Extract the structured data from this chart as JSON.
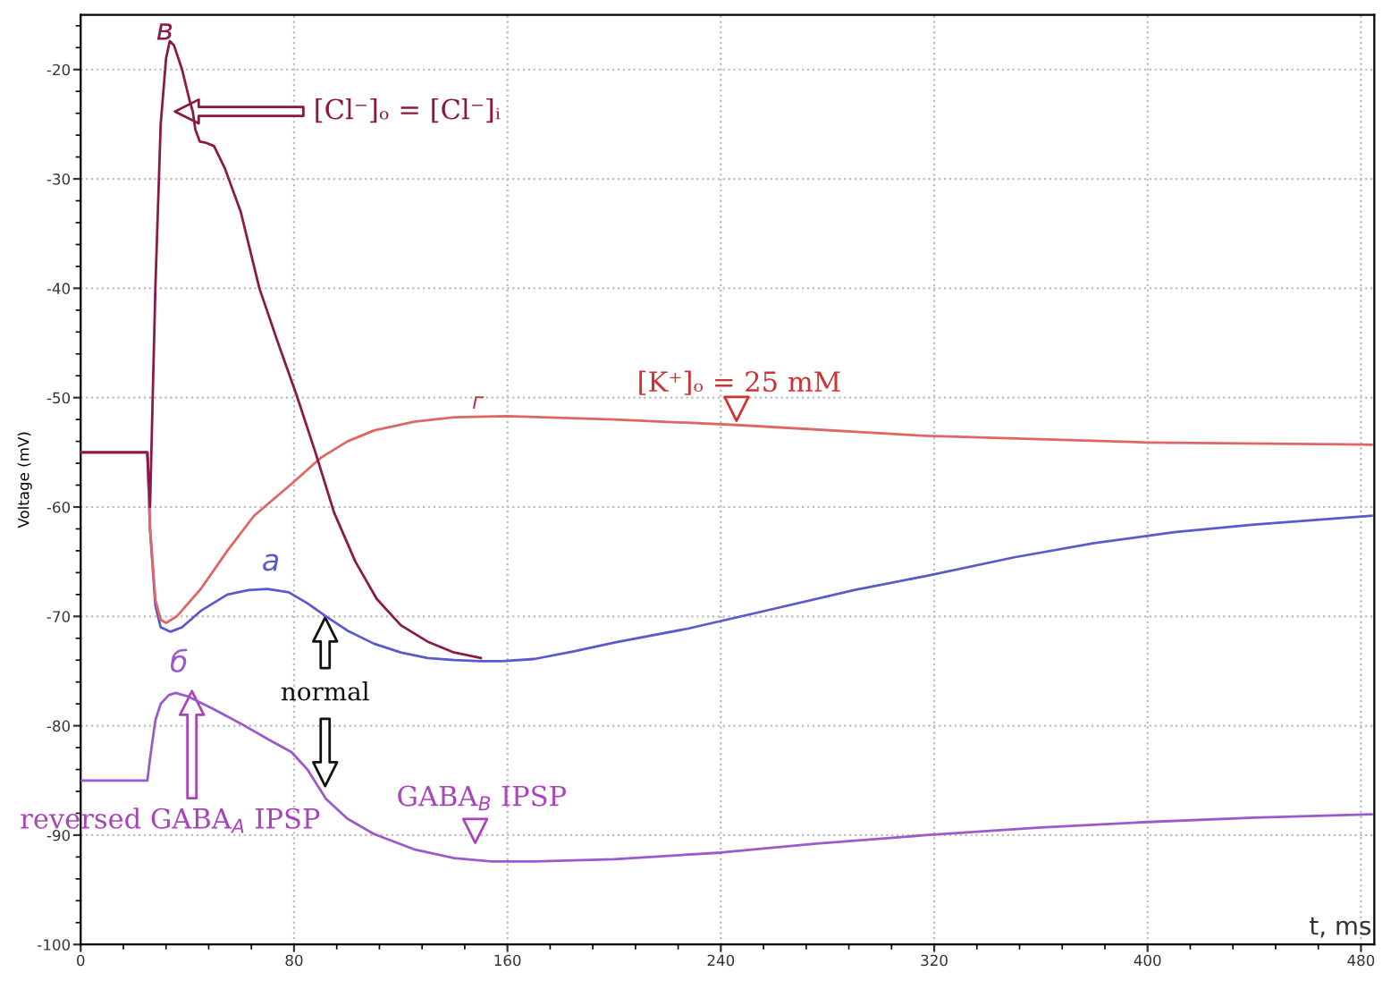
{
  "chart_data": {
    "type": "line",
    "xlabel": "t, ms",
    "ylabel": "Voltage (mV)",
    "xlim": [
      0,
      485
    ],
    "ylim": [
      -100,
      -15
    ],
    "xticks": [
      0,
      80,
      160,
      240,
      320,
      400,
      480
    ],
    "yticks": [
      -100,
      -90,
      -80,
      -70,
      -60,
      -50,
      -40,
      -30,
      -20
    ],
    "grid": true,
    "marker": "none",
    "line_style": "solid",
    "series": [
      {
        "color": "#5a5acc",
        "x": [
          0,
          25,
          26,
          28,
          30,
          33.7,
          38,
          45,
          55,
          63,
          70,
          78,
          85,
          92,
          100,
          110,
          120,
          130,
          140,
          150,
          158,
          170,
          185,
          200,
          228,
          260,
          290,
          317,
          350,
          380,
          410,
          440,
          484
        ],
        "values": [
          -55,
          -55,
          -62,
          -69,
          -71,
          -71.4,
          -71,
          -69.5,
          -68,
          -67.6,
          -67.5,
          -67.8,
          -68.8,
          -70,
          -71.3,
          -72.5,
          -73.3,
          -73.8,
          -74,
          -74.1,
          -74.1,
          -73.9,
          -73.2,
          -72.4,
          -71.1,
          -69.3,
          -67.6,
          -66.3,
          -64.6,
          -63.3,
          -62.3,
          -61.6,
          -60.8
        ]
      },
      {
        "color": "#e06666",
        "x": [
          0,
          25,
          26,
          28,
          30,
          32,
          36,
          45,
          55,
          65,
          79,
          90,
          100,
          110,
          125,
          140,
          160,
          200,
          246,
          317,
          400,
          484
        ],
        "values": [
          -55,
          -55,
          -62,
          -68.5,
          -70.3,
          -70.6,
          -70,
          -67.5,
          -64,
          -60.8,
          -57.9,
          -55.5,
          -54,
          -53,
          -52.2,
          -51.8,
          -51.7,
          -52,
          -52.5,
          -53.5,
          -54.1,
          -54.3
        ]
      },
      {
        "color": "#9a5acc",
        "x": [
          0,
          25,
          26,
          28,
          30,
          33,
          35.6,
          40,
          50,
          60,
          70,
          79,
          85,
          92,
          100,
          110,
          125,
          140,
          154,
          170,
          200,
          240,
          275,
          317,
          360,
          400,
          440,
          484
        ],
        "values": [
          -85,
          -85,
          -83,
          -79.5,
          -78,
          -77.2,
          -77,
          -77.3,
          -78.5,
          -79.8,
          -81.2,
          -82.4,
          -84,
          -86.7,
          -88.5,
          -89.9,
          -91.3,
          -92.1,
          -92.4,
          -92.4,
          -92.2,
          -91.6,
          -90.8,
          -90,
          -89.3,
          -88.8,
          -88.4,
          -88.1
        ]
      },
      {
        "color": "#8b1a4a",
        "x": [
          0,
          25,
          26,
          28,
          30,
          32,
          33.4,
          35,
          38,
          41,
          42,
          43,
          44.7,
          47,
          50,
          54,
          60,
          67,
          74,
          81,
          88,
          95,
          103,
          111,
          120,
          130,
          140,
          150
        ],
        "values": [
          -55,
          -55,
          -60,
          -40,
          -25,
          -19,
          -17.4,
          -17.8,
          -20,
          -23,
          -23.8,
          -25.5,
          -26.6,
          -26.7,
          -27,
          -29,
          -33,
          -40,
          -45,
          -49.8,
          -55,
          -60.5,
          -65,
          -68.4,
          -70.8,
          -72.3,
          -73.3,
          -73.8
        ]
      }
    ],
    "annotations": [
      "в",
      "a",
      "б",
      "г",
      "[Cl⁻]ₒ = [Cl⁻]ᵢ",
      "[K⁺]ₒ = 25 mM",
      "normal",
      "reversed GABA$_{A}$ IPSP",
      "GABA$_{B}$ IPSP"
    ]
  }
}
